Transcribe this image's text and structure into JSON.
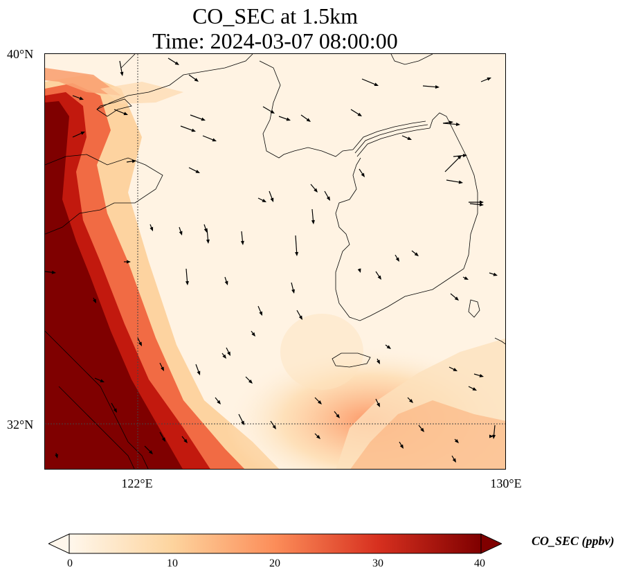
{
  "title": {
    "line1": "CO_SEC at 1.5km",
    "line2": "Time: 2024-03-07 08:00:00"
  },
  "map": {
    "lat_labels": [
      "40°N",
      "32°N"
    ],
    "lon_labels": [
      "122°E",
      "130°E"
    ],
    "extent_degrees": {
      "lon_min": 120,
      "lon_max": 130,
      "lat_min": 31,
      "lat_max": 40
    },
    "gridlines": {
      "lon": 122,
      "lat": 32,
      "style": "dotted"
    }
  },
  "colorbar": {
    "label": "CO_SEC (ppbv)",
    "ticks": [
      "0",
      "10",
      "20",
      "30",
      "40"
    ],
    "range": [
      0,
      40
    ],
    "extend": "both",
    "colormap": "OrRd",
    "colors": [
      "#fff7ec",
      "#fdd49e",
      "#fc8d59",
      "#d7301f",
      "#7f0000"
    ]
  }
}
